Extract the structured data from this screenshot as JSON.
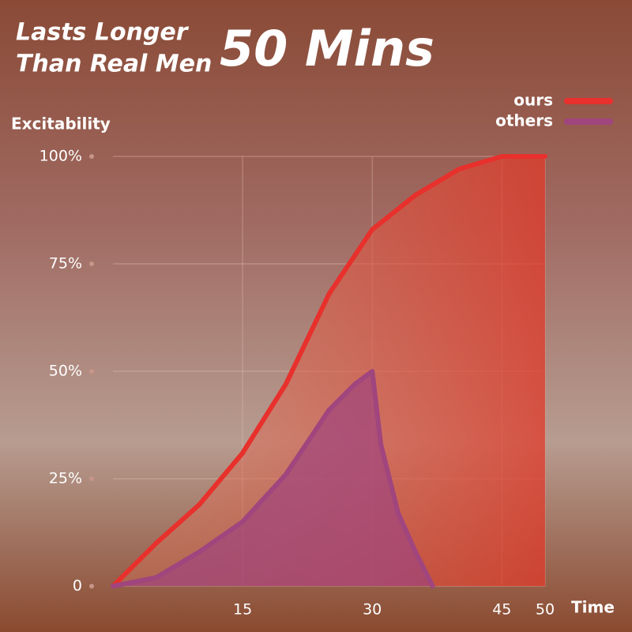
{
  "chart_data": {
    "type": "line",
    "title_lines": [
      "Lasts Longer",
      "Than Real Men"
    ],
    "headline": "50 Mins",
    "y_label": "Excitability",
    "x_label": "Time",
    "xlim": [
      0,
      50
    ],
    "xticks": [
      15,
      30,
      45,
      50
    ],
    "ylim": [
      0,
      100
    ],
    "yticks": [
      0,
      {
        "value": 25,
        "label": "25%"
      },
      {
        "value": 50,
        "label": "50%"
      },
      {
        "value": 75,
        "label": "75%"
      },
      {
        "value": 100,
        "label": "100%"
      }
    ],
    "grid": true,
    "legend": "top-right",
    "series": [
      {
        "name": "ours",
        "color": "#e8302c",
        "x": [
          0,
          5,
          10,
          15,
          20,
          25,
          30,
          35,
          40,
          45,
          50
        ],
        "values": [
          0,
          10,
          19,
          31,
          47,
          68,
          83,
          91,
          97,
          100,
          100
        ]
      },
      {
        "name": "others",
        "color": "#a0457e",
        "x": [
          0,
          5,
          10,
          15,
          20,
          25,
          28,
          30,
          31,
          33,
          35,
          37
        ],
        "values": [
          0,
          2,
          8,
          15,
          26,
          41,
          47,
          50,
          33,
          17,
          8,
          0
        ]
      }
    ]
  }
}
